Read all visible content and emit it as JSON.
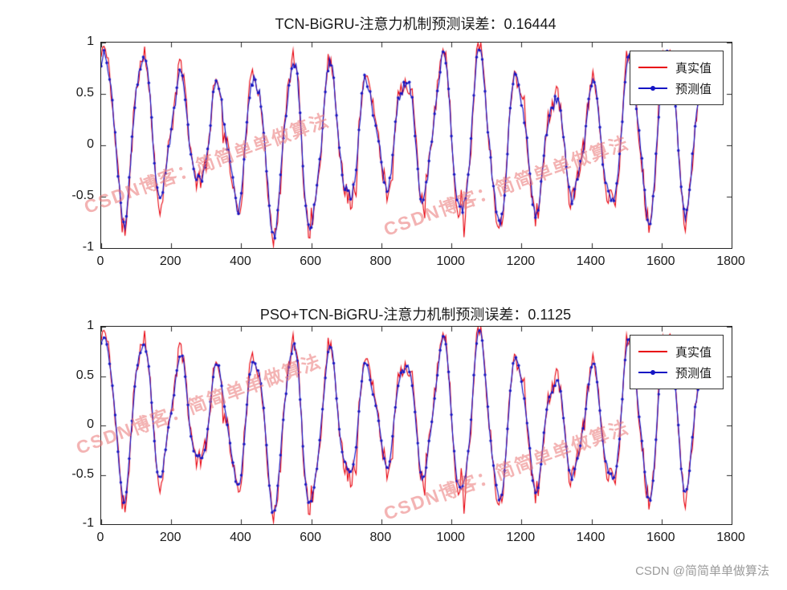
{
  "figure": {
    "background": "#ffffff",
    "watermark_text": "CSDN博客：简简单单做算法",
    "watermark_color": "rgba(233,116,116,0.55)",
    "credit": "CSDN @简简单单做算法"
  },
  "chart_data": [
    {
      "type": "line",
      "title": "TCN-BiGRU-注意力机制预测误差：0.16444",
      "error_value": 0.16444,
      "xlabel": "",
      "ylabel": "",
      "xlim": [
        0,
        1800
      ],
      "ylim": [
        -1,
        1
      ],
      "xticks": [
        0,
        200,
        400,
        600,
        800,
        1000,
        1200,
        1400,
        1600,
        1800
      ],
      "yticks": [
        -1,
        -0.5,
        0,
        0.5,
        1
      ],
      "grid": false,
      "legend_position": "top-right",
      "series": [
        {
          "name": "真实值",
          "color": "#e8000d",
          "marker": "none",
          "role": "actual"
        },
        {
          "name": "预测值",
          "color": "#1515c4",
          "marker": "dot",
          "role": "predicted"
        }
      ],
      "x_data_range": [
        0,
        1716
      ],
      "generator": {
        "seed_signal": 11,
        "seed_pred": 23,
        "n_points": 430,
        "x_start": 0,
        "x_step": 4,
        "period": 107,
        "amp_period": 520,
        "mean_period": 760,
        "ripple_period": 47,
        "noise_true": 0.22,
        "noise_pred": 0.11,
        "spike_prob": 0.05,
        "spike_scale": 0.55
      }
    },
    {
      "type": "line",
      "title": "PSO+TCN-BiGRU-注意力机制预测误差：0.1125",
      "error_value": 0.1125,
      "xlabel": "",
      "ylabel": "",
      "xlim": [
        0,
        1800
      ],
      "ylim": [
        -1,
        1
      ],
      "xticks": [
        0,
        200,
        400,
        600,
        800,
        1000,
        1200,
        1400,
        1600,
        1800
      ],
      "yticks": [
        -1,
        -0.5,
        0,
        0.5,
        1
      ],
      "grid": false,
      "legend_position": "top-right",
      "series": [
        {
          "name": "真实值",
          "color": "#e8000d",
          "marker": "none",
          "role": "actual"
        },
        {
          "name": "预测值",
          "color": "#1515c4",
          "marker": "dot",
          "role": "predicted"
        }
      ],
      "x_data_range": [
        0,
        1716
      ],
      "generator": {
        "seed_signal": 11,
        "seed_pred": 57,
        "n_points": 430,
        "x_start": 0,
        "x_step": 4,
        "period": 107,
        "amp_period": 520,
        "mean_period": 760,
        "ripple_period": 47,
        "noise_true": 0.22,
        "noise_pred": 0.06,
        "spike_prob": 0.05,
        "spike_scale": 0.55
      }
    }
  ]
}
